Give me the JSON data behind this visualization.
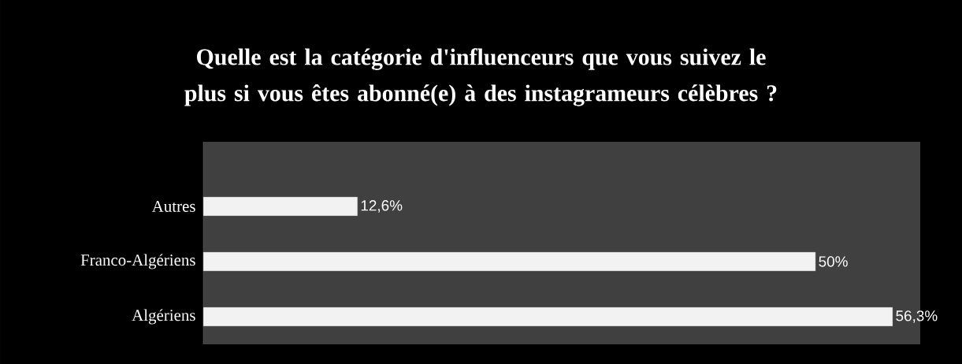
{
  "chart_data": {
    "type": "bar",
    "orientation": "horizontal",
    "title": "Quelle est la catégorie d'influenceurs que vous suivez le plus si vous êtes abonné(e) à des instagrameurs célèbres ?",
    "categories": [
      "Autres",
      "Franco-Algériens",
      "Algériens"
    ],
    "values": [
      12.6,
      50,
      56.3
    ],
    "value_labels": [
      "12,6%",
      "50%",
      "56,3%"
    ],
    "color": "#f2f2f2"
  }
}
